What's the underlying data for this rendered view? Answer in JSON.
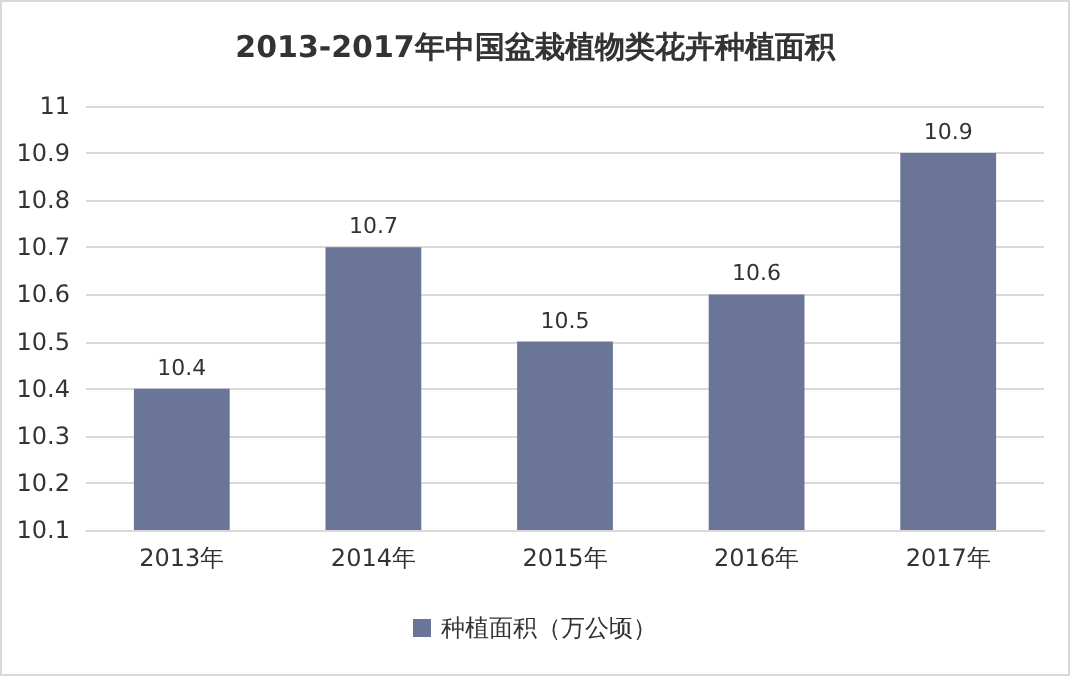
{
  "chart_data": {
    "type": "bar",
    "title": "2013-2017年中国盆栽植物类花卉种植面积",
    "categories": [
      "2013年",
      "2014年",
      "2015年",
      "2016年",
      "2017年"
    ],
    "series": [
      {
        "name": "种植面积（万公顷）",
        "color": "#6b7597",
        "values": [
          10.4,
          10.7,
          10.5,
          10.6,
          10.9
        ]
      }
    ],
    "ylim": [
      10.1,
      11
    ],
    "yticks": [
      10.1,
      10.2,
      10.3,
      10.4,
      10.5,
      10.6,
      10.7,
      10.8,
      10.9,
      11
    ],
    "grid": "y",
    "legend": "bottom",
    "data_labels": true
  }
}
